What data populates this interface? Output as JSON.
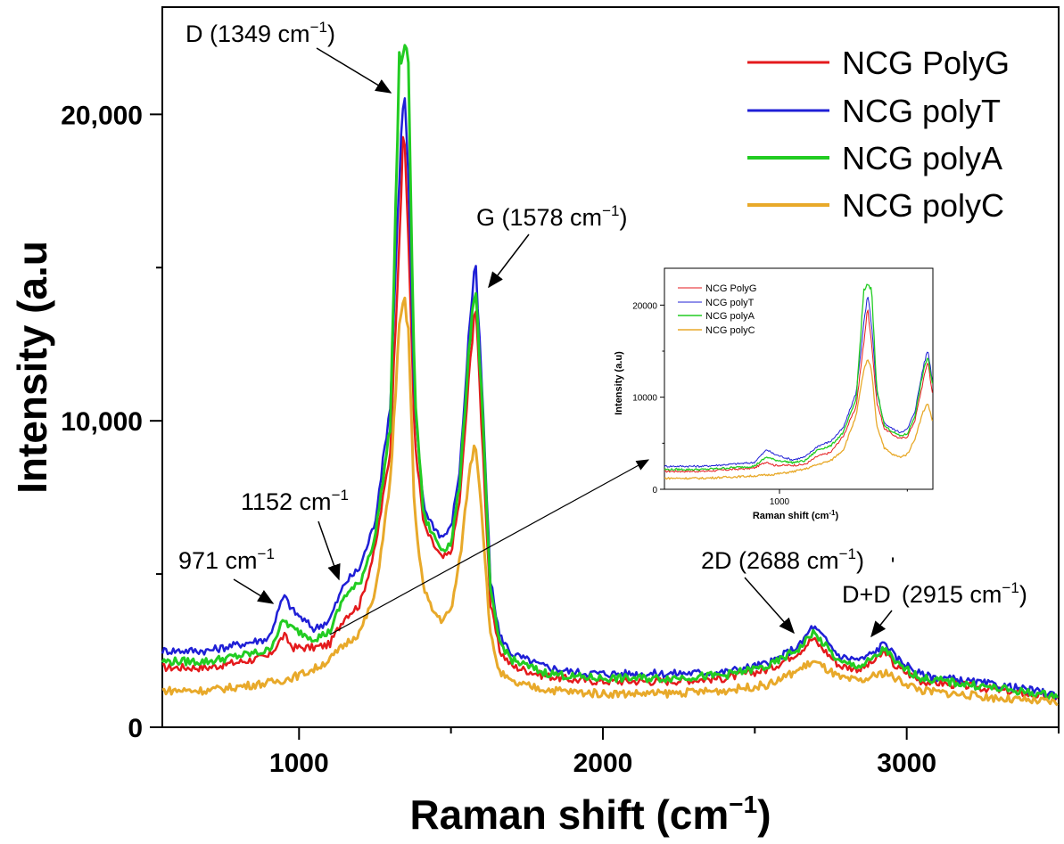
{
  "chart_data": {
    "type": "line",
    "xlabel": "Raman shift (cm",
    "xlabel_sup": "−1",
    "xlabel_end": ")",
    "ylabel": "Intensity (a.u",
    "xlim": [
      550,
      3500
    ],
    "ylim": [
      0,
      23500
    ],
    "x_ticks": [
      1000,
      2000,
      3000
    ],
    "x_tick_labels": [
      "1000",
      "2000",
      "3000"
    ],
    "y_ticks": [
      0,
      10000,
      20000
    ],
    "y_tick_labels": [
      "0",
      "10,000",
      "20,000"
    ],
    "legend_position": "top-right",
    "series": [
      {
        "name": "NCG PolyG",
        "color": "#e41a1c",
        "x": [
          550,
          700,
          900,
          950,
          980,
          1050,
          1100,
          1150,
          1200,
          1250,
          1300,
          1330,
          1345,
          1360,
          1380,
          1410,
          1440,
          1470,
          1500,
          1530,
          1560,
          1580,
          1600,
          1630,
          1660,
          1700,
          1800,
          1900,
          2000,
          2200,
          2400,
          2550,
          2650,
          2690,
          2720,
          2780,
          2850,
          2900,
          2930,
          2960,
          3050,
          3200,
          3350,
          3500
        ],
        "y": [
          1950,
          1950,
          2300,
          3000,
          2600,
          2600,
          2700,
          3600,
          4000,
          5800,
          9000,
          16000,
          19700,
          16000,
          9500,
          6600,
          6000,
          5500,
          5700,
          7500,
          11500,
          14000,
          10000,
          4000,
          2500,
          2000,
          1700,
          1550,
          1500,
          1500,
          1600,
          1900,
          2500,
          2900,
          2600,
          2000,
          1900,
          2200,
          2500,
          2000,
          1500,
          1350,
          1150,
          950
        ]
      },
      {
        "name": "NCG polyT",
        "color": "#1f1fd6",
        "x": [
          550,
          700,
          900,
          950,
          980,
          1050,
          1100,
          1150,
          1200,
          1250,
          1300,
          1330,
          1345,
          1360,
          1380,
          1410,
          1440,
          1470,
          1500,
          1530,
          1560,
          1580,
          1600,
          1630,
          1660,
          1700,
          1800,
          1900,
          2000,
          2200,
          2400,
          2550,
          2650,
          2690,
          2720,
          2780,
          2850,
          2900,
          2930,
          2960,
          3050,
          3200,
          3350,
          3500
        ],
        "y": [
          2500,
          2500,
          2900,
          4300,
          3800,
          3200,
          3500,
          4700,
          5200,
          6700,
          10500,
          18000,
          21000,
          18000,
          10500,
          7200,
          6600,
          6200,
          6500,
          8500,
          13000,
          15200,
          11500,
          4800,
          3000,
          2400,
          2000,
          1800,
          1750,
          1750,
          1800,
          2100,
          2700,
          3300,
          3000,
          2300,
          2200,
          2500,
          2800,
          2300,
          1700,
          1500,
          1300,
          1050
        ]
      },
      {
        "name": "NCG polyA",
        "color": "#22cc22",
        "x": [
          550,
          700,
          900,
          950,
          980,
          1050,
          1100,
          1150,
          1200,
          1250,
          1300,
          1330,
          1345,
          1360,
          1380,
          1410,
          1440,
          1470,
          1500,
          1530,
          1560,
          1580,
          1600,
          1630,
          1660,
          1700,
          1800,
          1900,
          2000,
          2200,
          2400,
          2550,
          2650,
          2690,
          2720,
          2780,
          2850,
          2900,
          2930,
          2960,
          3050,
          3200,
          3350,
          3500
        ],
        "y": [
          2150,
          2150,
          2500,
          3500,
          3200,
          2900,
          3100,
          4300,
          4700,
          6200,
          9800,
          21700,
          22100,
          21700,
          11000,
          6900,
          6300,
          5800,
          6000,
          8000,
          12500,
          14500,
          11000,
          4400,
          2800,
          2200,
          1800,
          1650,
          1600,
          1600,
          1700,
          2000,
          2600,
          3100,
          2800,
          2100,
          2000,
          2300,
          2600,
          2100,
          1600,
          1400,
          1200,
          1000
        ]
      },
      {
        "name": "NCG polyC",
        "color": "#e8a92a",
        "x": [
          550,
          700,
          900,
          950,
          1000,
          1050,
          1100,
          1150,
          1200,
          1250,
          1300,
          1330,
          1345,
          1360,
          1380,
          1410,
          1440,
          1470,
          1500,
          1530,
          1560,
          1580,
          1600,
          1630,
          1660,
          1700,
          1800,
          1900,
          2000,
          2200,
          2400,
          2550,
          2650,
          2690,
          2720,
          2780,
          2850,
          2900,
          2930,
          2960,
          3050,
          3200,
          3350,
          3500
        ],
        "y": [
          1200,
          1200,
          1450,
          1550,
          1700,
          1900,
          2200,
          2700,
          3100,
          4300,
          8000,
          13000,
          14000,
          13000,
          7000,
          4500,
          3800,
          3500,
          3800,
          5500,
          8300,
          9400,
          7200,
          3000,
          1800,
          1450,
          1250,
          1150,
          1100,
          1100,
          1200,
          1400,
          1900,
          2150,
          2000,
          1600,
          1500,
          1700,
          1800,
          1600,
          1200,
          1050,
          900,
          800
        ]
      }
    ],
    "annotations": [
      {
        "text": "D (1349 cm",
        "sup": "−1",
        "end": ")"
      },
      {
        "text": "G (1578 cm",
        "sup": "−1",
        "end": ")"
      },
      {
        "text": "1152 cm",
        "sup": "−1",
        "end": ""
      },
      {
        "text": "971 cm",
        "sup": "−1",
        "end": ""
      },
      {
        "text": "2D (2688 cm",
        "sup": "−1",
        "end": ")"
      },
      {
        "text": "D+D",
        "sup": "'",
        "end": " (2915 cm",
        "sup2": "−1",
        "end2": ")"
      }
    ],
    "inset": {
      "xlabel": "Raman shift (cm",
      "xlabel_sup": "-1",
      "xlabel_end": ")",
      "ylabel": "Intensity (a.u)",
      "xlim": [
        550,
        1600
      ],
      "ylim": [
        0,
        24000
      ],
      "x_ticks": [
        1000
      ],
      "x_tick_labels": [
        "1000"
      ],
      "y_ticks": [
        0,
        10000,
        20000
      ],
      "y_tick_labels": [
        "0",
        "10000",
        "20000"
      ],
      "legend_position": "top-left"
    }
  }
}
